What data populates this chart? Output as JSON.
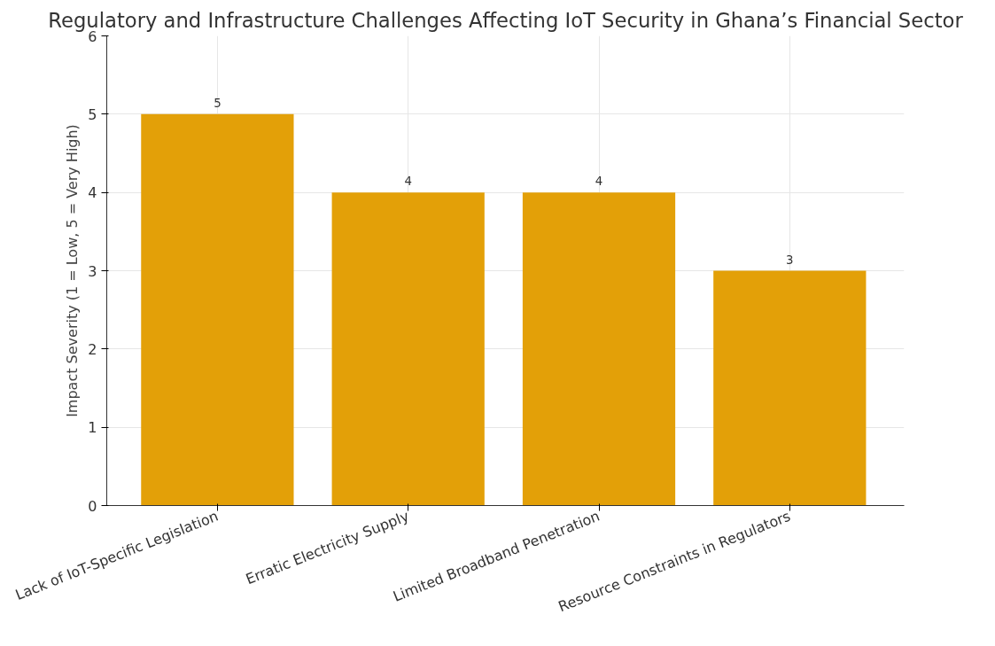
{
  "chart_data": {
    "type": "bar",
    "title": "Regulatory and Infrastructure Challenges Affecting IoT Security in Ghana’s Financial Sector",
    "ylabel": "Impact Severity (1 = Low, 5 = Very High)",
    "categories": [
      "Lack of IoT-Specific Legislation",
      "Erratic Electricity Supply",
      "Limited Broadband Penetration",
      "Resource Constraints in Regulators"
    ],
    "values": [
      5,
      4,
      4,
      3
    ],
    "color": "#e3a008",
    "ylim": [
      0,
      6
    ],
    "yticks": [
      0,
      1,
      2,
      3,
      4,
      5,
      6
    ],
    "grid": true,
    "data_labels": true
  }
}
